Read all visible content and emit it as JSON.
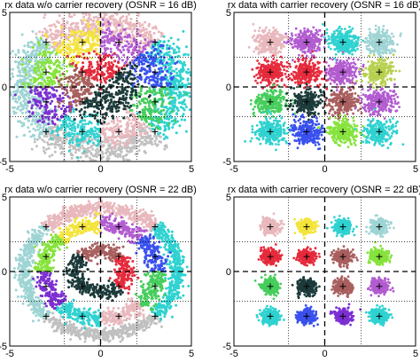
{
  "colors": {
    "cloud_palette": [
      "#e8b8bd",
      "#9c9c9c",
      "#f4e43a",
      "#2fd2d0",
      "#b25cd0",
      "#86e33c",
      "#a85f5e",
      "#1c3b3a",
      "#3b51ee",
      "#46cd5c",
      "#b8d050",
      "#e52b3c",
      "#9ed4d4",
      "#c0c0c0",
      "#7c2fd2",
      "#5aa0a0"
    ],
    "marker": "#000000",
    "axes": "#000000",
    "grid": "#000000"
  },
  "chart_data": [
    {
      "type": "scatter",
      "title": "rx data w/o carrier recovery (OSNR = 16 dB)",
      "xlim": [
        -5,
        5
      ],
      "ylim": [
        -5,
        5
      ],
      "xticks": [
        -5,
        0,
        5
      ],
      "yticks": [
        -5,
        0,
        5
      ],
      "grid": true,
      "grid_lines": [
        -2,
        2
      ],
      "center_lines": [
        0
      ],
      "ideal_points": [
        [
          -3,
          3
        ],
        [
          -1,
          3
        ],
        [
          1,
          3
        ],
        [
          3,
          3
        ],
        [
          -3,
          1
        ],
        [
          -1,
          1
        ],
        [
          1,
          1
        ],
        [
          3,
          1
        ],
        [
          -3,
          -1
        ],
        [
          -1,
          -1
        ],
        [
          1,
          -1
        ],
        [
          3,
          -1
        ],
        [
          -3,
          -3
        ],
        [
          -1,
          -3
        ],
        [
          1,
          -3
        ],
        [
          3,
          -3
        ]
      ],
      "rings": [
        {
          "radius": 1.41,
          "spread": 0.55,
          "colors": [
            "#1c3b3a",
            "#e52b3c",
            "#a85f5e",
            "#1c3b3a"
          ]
        },
        {
          "radius": 3.16,
          "spread": 0.6,
          "colors": [
            "#46cd5c",
            "#3b51ee",
            "#b25cd0",
            "#f4e43a",
            "#86e33c",
            "#7c2fd2",
            "#2fd2d0",
            "#e8b8bd"
          ]
        },
        {
          "radius": 4.24,
          "spread": 0.5,
          "colors": [
            "#2fd2d0",
            "#e8b8bd",
            "#9ed4d4",
            "#c0c0c0"
          ]
        }
      ]
    },
    {
      "type": "scatter",
      "title": "rx data with carrier recovery (OSNR = 16 dB)",
      "xlim": [
        -5,
        5
      ],
      "ylim": [
        -5,
        5
      ],
      "xticks": [
        -5,
        0,
        5
      ],
      "yticks": [
        -5,
        0,
        5
      ],
      "grid": true,
      "grid_lines": [
        -2,
        2
      ],
      "center_lines": [
        0
      ],
      "ideal_points": [
        [
          -3,
          3
        ],
        [
          -1,
          3
        ],
        [
          1,
          3
        ],
        [
          3,
          3
        ],
        [
          -3,
          1
        ],
        [
          -1,
          1
        ],
        [
          1,
          1
        ],
        [
          3,
          1
        ],
        [
          -3,
          -1
        ],
        [
          -1,
          -1
        ],
        [
          1,
          -1
        ],
        [
          3,
          -1
        ],
        [
          -3,
          -3
        ],
        [
          -1,
          -3
        ],
        [
          1,
          -3
        ],
        [
          3,
          -3
        ]
      ],
      "clusters": [
        {
          "center": [
            -3,
            3
          ],
          "spread": 0.42,
          "color": "#e8b8bd"
        },
        {
          "center": [
            -1,
            3
          ],
          "spread": 0.42,
          "color": "#b25cd0"
        },
        {
          "center": [
            1,
            3
          ],
          "spread": 0.42,
          "color": "#2fd2d0"
        },
        {
          "center": [
            3,
            3
          ],
          "spread": 0.42,
          "color": "#9ed4d4"
        },
        {
          "center": [
            -3,
            1
          ],
          "spread": 0.42,
          "color": "#e52b3c"
        },
        {
          "center": [
            -1,
            1
          ],
          "spread": 0.42,
          "color": "#e52b3c"
        },
        {
          "center": [
            1,
            1
          ],
          "spread": 0.42,
          "color": "#b25cd0"
        },
        {
          "center": [
            3,
            1
          ],
          "spread": 0.42,
          "color": "#b8d050"
        },
        {
          "center": [
            -3,
            -1
          ],
          "spread": 0.42,
          "color": "#46cd5c"
        },
        {
          "center": [
            -1,
            -1
          ],
          "spread": 0.42,
          "color": "#1c3b3a"
        },
        {
          "center": [
            1,
            -1
          ],
          "spread": 0.42,
          "color": "#a85f5e"
        },
        {
          "center": [
            3,
            -1
          ],
          "spread": 0.42,
          "color": "#b25cd0"
        },
        {
          "center": [
            -3,
            -3
          ],
          "spread": 0.42,
          "color": "#2fd2d0"
        },
        {
          "center": [
            -1,
            -3
          ],
          "spread": 0.42,
          "color": "#3b51ee"
        },
        {
          "center": [
            1,
            -3
          ],
          "spread": 0.42,
          "color": "#86e33c"
        },
        {
          "center": [
            3,
            -3
          ],
          "spread": 0.42,
          "color": "#2fd2d0"
        }
      ]
    },
    {
      "type": "scatter",
      "title": "rx data w/o carrier recovery (OSNR = 22 dB)",
      "xlim": [
        -5,
        5
      ],
      "ylim": [
        -5,
        5
      ],
      "xticks": [
        -5,
        0,
        5
      ],
      "yticks": [
        -5,
        0,
        5
      ],
      "grid": true,
      "grid_lines": [
        -2,
        2
      ],
      "center_lines": [
        0
      ],
      "ideal_points": [
        [
          -3,
          3
        ],
        [
          -1,
          3
        ],
        [
          1,
          3
        ],
        [
          3,
          3
        ],
        [
          -3,
          1
        ],
        [
          -1,
          1
        ],
        [
          1,
          1
        ],
        [
          3,
          1
        ],
        [
          -3,
          -1
        ],
        [
          -1,
          -1
        ],
        [
          1,
          -1
        ],
        [
          3,
          -1
        ],
        [
          -3,
          -3
        ],
        [
          -1,
          -3
        ],
        [
          1,
          -3
        ],
        [
          3,
          -3
        ]
      ],
      "rings": [
        {
          "radius": 1.41,
          "spread": 0.25,
          "colors": [
            "#e52b3c",
            "#a85f5e",
            "#1c3b3a",
            "#1c3b3a"
          ]
        },
        {
          "radius": 3.16,
          "spread": 0.28,
          "colors": [
            "#46cd5c",
            "#3b51ee",
            "#b25cd0",
            "#f4e43a",
            "#86e33c",
            "#7c2fd2",
            "#2fd2d0",
            "#e8b8bd"
          ]
        },
        {
          "radius": 4.24,
          "spread": 0.22,
          "colors": [
            "#2fd2d0",
            "#e8b8bd",
            "#9ed4d4",
            "#c0c0c0"
          ]
        }
      ]
    },
    {
      "type": "scatter",
      "title": "rx data with carrier recovery (OSNR = 22 dB)",
      "xlim": [
        -5,
        5
      ],
      "ylim": [
        -5,
        5
      ],
      "xticks": [
        -5,
        0,
        5
      ],
      "yticks": [
        -5,
        0,
        5
      ],
      "grid": true,
      "grid_lines": [
        -2,
        2
      ],
      "center_lines": [
        0
      ],
      "ideal_points": [
        [
          -3,
          3
        ],
        [
          -1,
          3
        ],
        [
          1,
          3
        ],
        [
          3,
          3
        ],
        [
          -3,
          1
        ],
        [
          -1,
          1
        ],
        [
          1,
          1
        ],
        [
          3,
          1
        ],
        [
          -3,
          -1
        ],
        [
          -1,
          -1
        ],
        [
          1,
          -1
        ],
        [
          3,
          -1
        ],
        [
          -3,
          -3
        ],
        [
          -1,
          -3
        ],
        [
          1,
          -3
        ],
        [
          3,
          -3
        ]
      ],
      "clusters": [
        {
          "center": [
            -3,
            3
          ],
          "spread": 0.25,
          "color": "#e8b8bd"
        },
        {
          "center": [
            -1,
            3
          ],
          "spread": 0.25,
          "color": "#f4e43a"
        },
        {
          "center": [
            1,
            3
          ],
          "spread": 0.25,
          "color": "#2fd2d0"
        },
        {
          "center": [
            3,
            3
          ],
          "spread": 0.25,
          "color": "#9ed4d4"
        },
        {
          "center": [
            -3,
            1
          ],
          "spread": 0.25,
          "color": "#e52b3c"
        },
        {
          "center": [
            -1,
            1
          ],
          "spread": 0.25,
          "color": "#e52b3c"
        },
        {
          "center": [
            1,
            1
          ],
          "spread": 0.25,
          "color": "#a85f5e"
        },
        {
          "center": [
            3,
            1
          ],
          "spread": 0.25,
          "color": "#86e33c"
        },
        {
          "center": [
            -3,
            -1
          ],
          "spread": 0.25,
          "color": "#46cd5c"
        },
        {
          "center": [
            -1,
            -1
          ],
          "spread": 0.25,
          "color": "#1c3b3a"
        },
        {
          "center": [
            1,
            -1
          ],
          "spread": 0.25,
          "color": "#a85f5e"
        },
        {
          "center": [
            3,
            -1
          ],
          "spread": 0.25,
          "color": "#b25cd0"
        },
        {
          "center": [
            -3,
            -3
          ],
          "spread": 0.25,
          "color": "#2fd2d0"
        },
        {
          "center": [
            -1,
            -3
          ],
          "spread": 0.25,
          "color": "#3b51ee"
        },
        {
          "center": [
            1,
            -3
          ],
          "spread": 0.25,
          "color": "#7c2fd2"
        },
        {
          "center": [
            3,
            -3
          ],
          "spread": 0.25,
          "color": "#2fd2d0"
        }
      ]
    }
  ]
}
